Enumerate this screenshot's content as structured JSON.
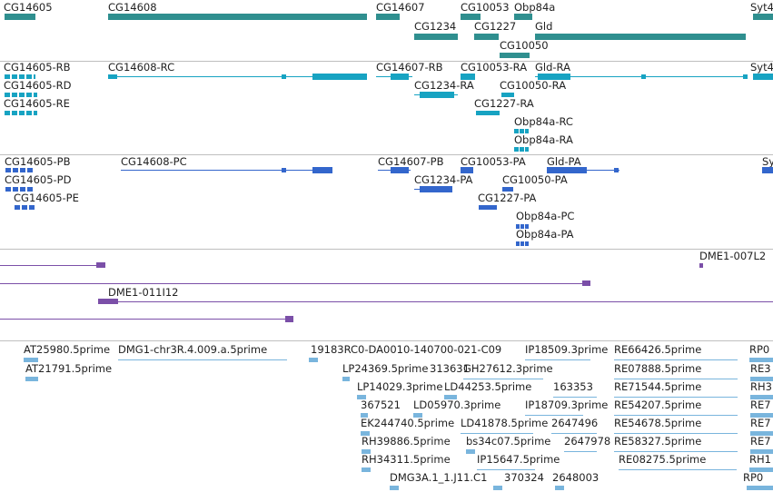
{
  "colors": {
    "gene": "#2f8f8f",
    "transcript": "#17a3c2",
    "protein": "#3366cc",
    "clone": "#7b4fa8",
    "est": "#79b5dd",
    "separator": "#bfbfbf"
  },
  "genes": {
    "labels": [
      "CG14605",
      "CG14608",
      "CG14607",
      "CG10053",
      "Obp84a",
      "Syt4",
      "CG1234",
      "CG1227",
      "Gld",
      "CG10050"
    ]
  },
  "transcripts": {
    "labels": [
      "CG14605-RB",
      "CG14605-RD",
      "CG14605-RE",
      "CG14608-RC",
      "CG14607-RB",
      "CG10053-RA",
      "Gld-RA",
      "Syt4",
      "CG1234-RA",
      "CG10050-RA",
      "CG1227-RA",
      "Obp84a-RC",
      "Obp84a-RA"
    ]
  },
  "proteins": {
    "labels": [
      "CG14605-PB",
      "CG14605-PD",
      "CG14605-PE",
      "CG14608-PC",
      "CG14607-PB",
      "CG10053-PA",
      "Gld-PA",
      "Sy",
      "CG1234-PA",
      "CG10050-PA",
      "CG1227-PA",
      "Obp84a-PC",
      "Obp84a-PA"
    ]
  },
  "clones": {
    "labels": [
      "DME1-007L2",
      "DME1-011I12"
    ]
  },
  "ests": {
    "labels": [
      "AT25980.5prime",
      "DMG1-chr3R.4.009.a.5prime",
      "19183RC0-DA0010-140700-021-C09",
      "IP18509.3prime",
      "RE66426.5prime",
      "RP0",
      "AT21791.5prime",
      "LP24369.5prime",
      "313631",
      "GH27612.3prime",
      "RE07888.5prime",
      "RE3",
      "LP14029.3prime",
      "LD44253.5prime",
      "163353",
      "RE71544.5prime",
      "RH3",
      "367521",
      "LD05970.3prime",
      "IP18709.3prime",
      "RE54207.5prime",
      "RE7",
      "EK244740.5prime",
      "LD41878.5prime",
      "2647496",
      "RE54678.5prime",
      "RE7",
      "RH39886.5prime",
      "bs34c07.5prime",
      "2647978",
      "RE58327.5prime",
      "RE7",
      "RH34311.5prime",
      "IP15647.5prime",
      "RE08275.5prime",
      "RH1",
      "DMG3A.1_1.J11.C1",
      "370324",
      "2648003",
      "RP0"
    ]
  }
}
